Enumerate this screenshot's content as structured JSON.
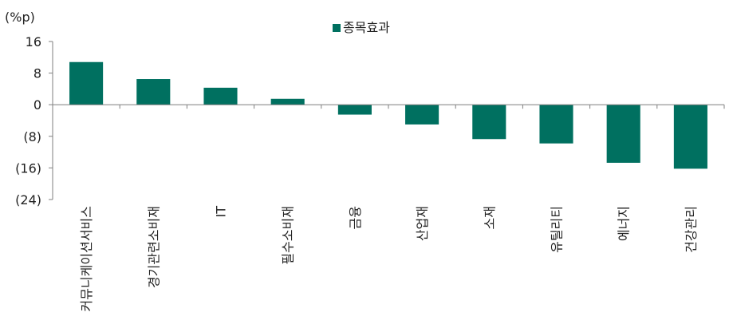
{
  "chart_data": {
    "type": "bar",
    "unit_label": "(%p)",
    "legend": {
      "series_name": "종목효과",
      "placement": "top-center"
    },
    "categories": [
      "커뮤니케이션서비스",
      "경기관련소비재",
      "IT",
      "필수소비재",
      "금융",
      "산업재",
      "소재",
      "유틸리티",
      "에너지",
      "건강관리"
    ],
    "series": [
      {
        "name": "종목효과",
        "color": "#007060",
        "values": [
          10.8,
          6.5,
          4.3,
          1.5,
          -2.5,
          -5.0,
          -8.7,
          -9.8,
          -14.7,
          -16.2
        ]
      }
    ],
    "yticks": [
      16,
      8,
      0,
      -8,
      -16,
      -24
    ],
    "ytick_labels": [
      "16",
      "8",
      "0",
      "(8)",
      "(16)",
      "(24)"
    ],
    "ylim": [
      -24,
      16
    ],
    "grid": false
  }
}
